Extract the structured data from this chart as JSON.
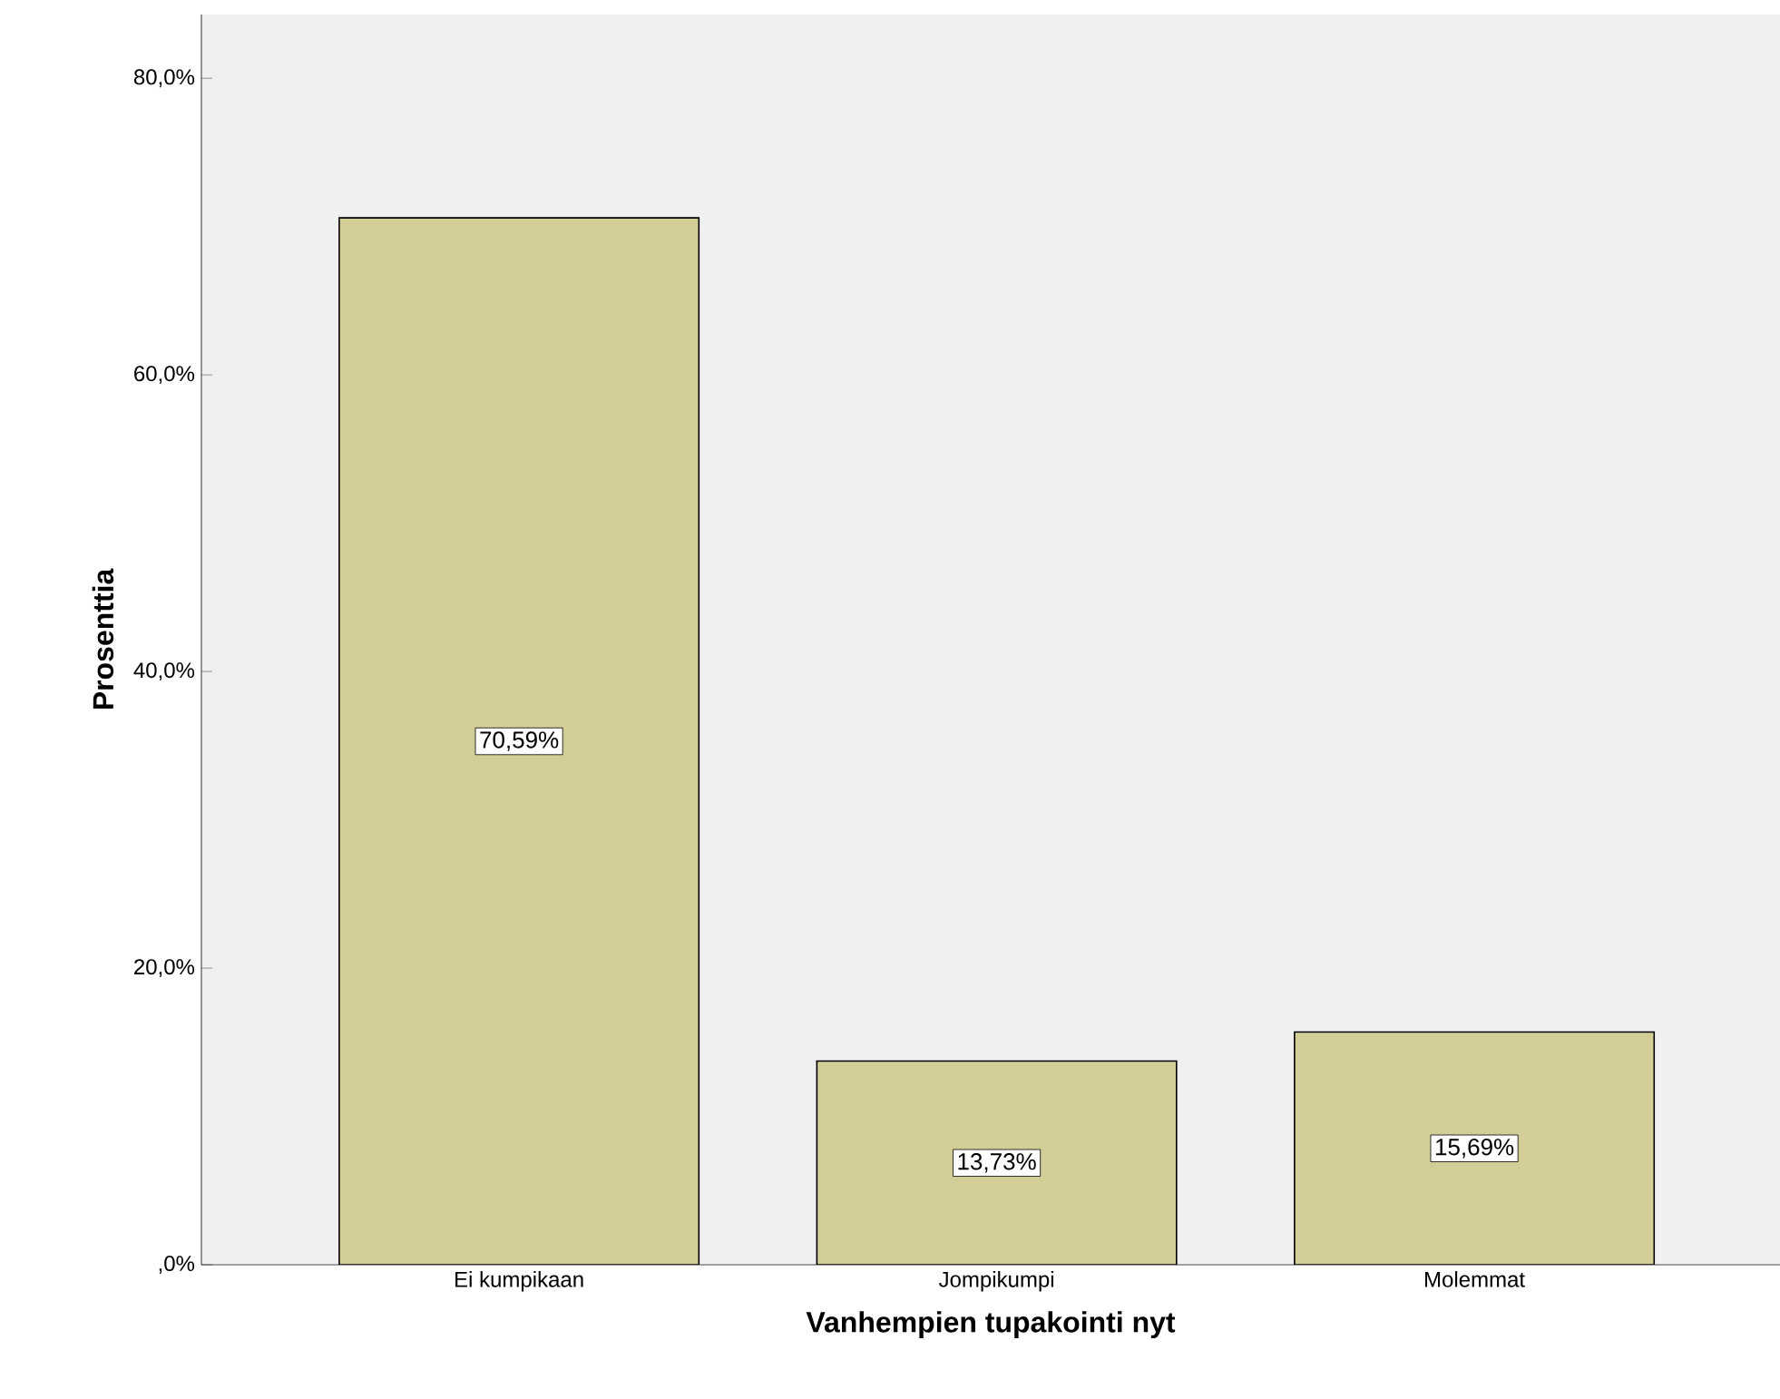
{
  "chart_data": {
    "type": "bar",
    "xlabel": "Vanhempien tupakointi nyt",
    "ylabel": "Prosenttia",
    "categories": [
      "Ei kumpikaan",
      "Jompikumpi",
      "Molemmat"
    ],
    "values": [
      70.59,
      13.73,
      15.69
    ],
    "value_labels": [
      "70,59%",
      "13,73%",
      "15,69%"
    ],
    "color": "#d3ce97",
    "ylim": [
      0,
      84.3
    ],
    "yticks": [
      {
        "value": 0,
        "label": ",0%"
      },
      {
        "value": 20,
        "label": "20,0%"
      },
      {
        "value": 40,
        "label": "40,0%"
      },
      {
        "value": 60,
        "label": "60,0%"
      },
      {
        "value": 80,
        "label": "80,0%"
      }
    ],
    "grid": false
  }
}
